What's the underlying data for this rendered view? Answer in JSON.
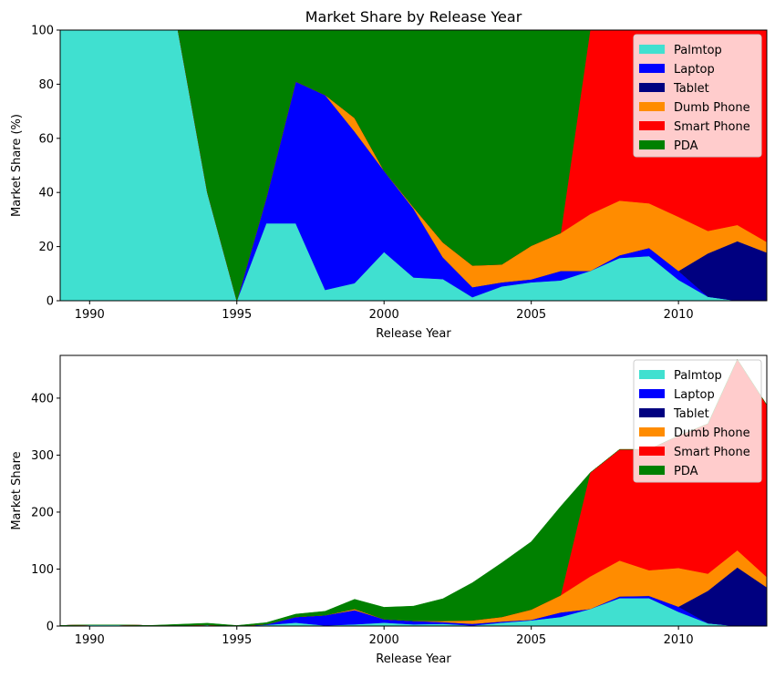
{
  "chart_data": [
    {
      "type": "area",
      "stacked": true,
      "title": "Market Share by Release Year",
      "xlabel": "Release Year",
      "ylabel": "Market Share (%)",
      "xlim": [
        1989,
        2013
      ],
      "ylim": [
        0,
        100
      ],
      "xticks": [
        1990,
        1995,
        2000,
        2005,
        2010
      ],
      "yticks": [
        0,
        20,
        40,
        60,
        80,
        100
      ],
      "legend_position": "top-right",
      "x": [
        1989,
        1990,
        1991,
        1992,
        1993,
        1994,
        1995,
        1996,
        1997,
        1998,
        1999,
        2000,
        2001,
        2002,
        2003,
        2004,
        2005,
        2006,
        2007,
        2008,
        2009,
        2010,
        2011,
        2012,
        2013
      ],
      "series": [
        {
          "name": "Palmtop",
          "color": "#40e0d0",
          "values": [
            100,
            100,
            100,
            100,
            100,
            40,
            0,
            28.6,
            28.6,
            4,
            6.5,
            18,
            8.6,
            8,
            1.3,
            5.3,
            6.8,
            7.5,
            11,
            15.8,
            16.5,
            7.7,
            1.5,
            0,
            0
          ]
        },
        {
          "name": "Laptop",
          "color": "#0000ff",
          "values": [
            0,
            0,
            0,
            0,
            0,
            0,
            0,
            9.4,
            52.4,
            72,
            56,
            30,
            25.4,
            8,
            3.7,
            1.5,
            1.1,
            3.5,
            0,
            1,
            3,
            3.3,
            0,
            0,
            0
          ]
        },
        {
          "name": "Tablet",
          "color": "#000080",
          "values": [
            0,
            0,
            0,
            0,
            0,
            0,
            0,
            0,
            0,
            0,
            0,
            0,
            0,
            0,
            0,
            0,
            0,
            0,
            0,
            0,
            0,
            0,
            16,
            22,
            17.8
          ]
        },
        {
          "name": "Dumb Phone",
          "color": "#ff8c00",
          "values": [
            0,
            0,
            0,
            0,
            0,
            0,
            0,
            0,
            0,
            0,
            5,
            0,
            0.5,
            5.5,
            8,
            6.6,
            12.4,
            14,
            21,
            20.2,
            16.5,
            20,
            8.3,
            6,
            3.9
          ]
        },
        {
          "name": "Smart Phone",
          "color": "#ff0000",
          "values": [
            0,
            0,
            0,
            0,
            0,
            0,
            0,
            0,
            0,
            0,
            0,
            0,
            0,
            0,
            0,
            0,
            0,
            0,
            68,
            63,
            64,
            69,
            74.2,
            72,
            78.3
          ]
        },
        {
          "name": "PDA",
          "color": "#008000",
          "values": [
            0,
            0,
            0,
            0,
            0,
            60,
            100,
            62,
            19,
            24,
            32.5,
            52,
            65.5,
            78.5,
            87,
            86.6,
            79.7,
            75,
            0,
            0,
            0,
            0,
            0,
            0,
            0
          ]
        }
      ]
    },
    {
      "type": "area",
      "stacked": true,
      "title": "",
      "xlabel": "Release Year",
      "ylabel": "Market Share",
      "xlim": [
        1989,
        2013
      ],
      "ylim": [
        0,
        475
      ],
      "xticks": [
        1990,
        1995,
        2000,
        2005,
        2010
      ],
      "yticks": [
        0,
        100,
        200,
        300,
        400
      ],
      "legend_position": "top-right",
      "x": [
        1989,
        1990,
        1991,
        1992,
        1993,
        1994,
        1995,
        1996,
        1997,
        1998,
        1999,
        2000,
        2001,
        2002,
        2003,
        2004,
        2005,
        2006,
        2007,
        2008,
        2009,
        2010,
        2011,
        2012,
        2013
      ],
      "series": [
        {
          "name": "Palmtop",
          "color": "#40e0d0",
          "values": [
            1,
            2,
            2,
            1,
            1,
            2,
            0,
            2,
            6,
            1,
            3,
            6,
            3,
            4,
            1,
            6,
            10,
            16,
            30,
            49,
            49,
            25,
            5,
            0,
            0
          ]
        },
        {
          "name": "Laptop",
          "color": "#0000ff",
          "values": [
            0,
            0,
            0,
            0,
            0,
            0,
            0,
            1,
            10,
            18,
            25,
            6,
            6,
            3,
            3,
            2,
            1,
            8,
            0,
            3,
            4,
            9,
            0,
            0,
            0
          ]
        },
        {
          "name": "Tablet",
          "color": "#000080",
          "values": [
            0,
            0,
            0,
            0,
            0,
            0,
            0,
            0,
            0,
            0,
            0,
            0,
            0,
            0,
            0,
            0,
            0,
            0,
            0,
            0,
            0,
            0,
            57,
            103,
            68
          ]
        },
        {
          "name": "Dumb Phone",
          "color": "#ff8c00",
          "values": [
            0,
            0,
            0,
            0,
            0,
            0,
            0,
            0,
            0,
            0,
            2,
            0,
            0,
            2,
            6,
            8,
            18,
            30,
            57,
            63,
            45,
            68,
            30,
            30,
            18
          ]
        },
        {
          "name": "Smart Phone",
          "color": "#ff0000",
          "values": [
            0,
            0,
            0,
            0,
            0,
            0,
            0,
            0,
            0,
            0,
            0,
            0,
            0,
            0,
            0,
            0,
            0,
            0,
            182,
            195,
            212,
            232,
            263,
            335,
            302
          ]
        },
        {
          "name": "PDA",
          "color": "#008000",
          "values": [
            0,
            0,
            0,
            0,
            2,
            3,
            1,
            3,
            5,
            7,
            17,
            21,
            26,
            39,
            66,
            95,
            119,
            156,
            0,
            0,
            0,
            0,
            0,
            0,
            0
          ]
        }
      ]
    }
  ]
}
